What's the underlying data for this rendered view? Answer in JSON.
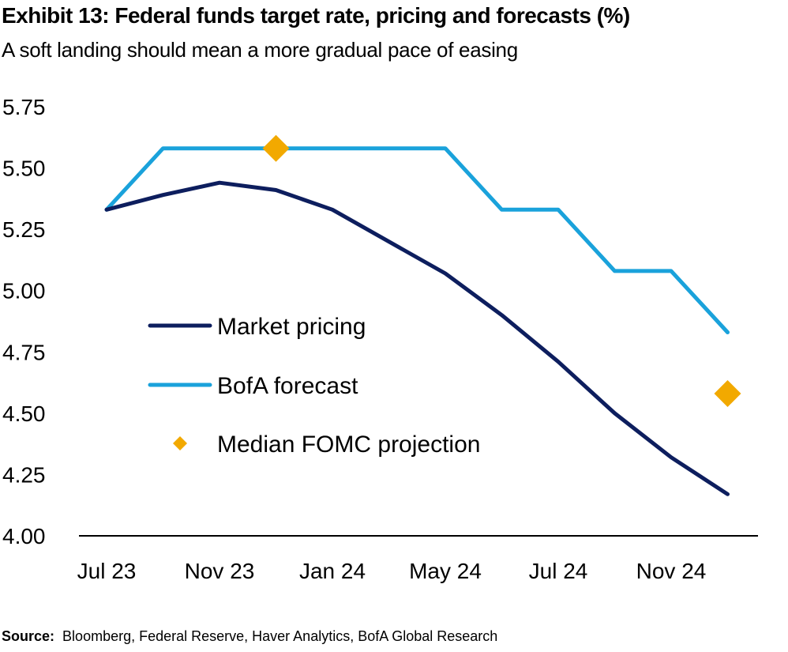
{
  "title": "Exhibit 13: Federal funds target rate, pricing and forecasts (%)",
  "subtitle": "A soft landing should mean a more gradual pace of easing",
  "source_label": "Source:",
  "source_text": "Bloomberg, Federal Reserve, Haver Analytics, BofA Global Research",
  "colors": {
    "market": "#0d1e5e",
    "bofa": "#1aa2db",
    "fomc": "#f2a900",
    "axis": "#000000"
  },
  "chart_data": {
    "type": "line",
    "title": "Exhibit 13: Federal funds target rate, pricing and forecasts (%)",
    "subtitle": "A soft landing should mean a more gradual pace of easing",
    "x_tick_labels": [
      "Jul 23",
      "Nov 23",
      "Jan 24",
      "May 24",
      "Jul 24",
      "Nov 24"
    ],
    "y_tick_labels": [
      "5.75",
      "5.50",
      "5.25",
      "5.00",
      "4.75",
      "4.50",
      "4.25",
      "4.00"
    ],
    "ylim": [
      4.0,
      5.75
    ],
    "grid": false,
    "legend_position": "center-left",
    "series": [
      {
        "name": "Market pricing",
        "style": "line",
        "x": [
          0,
          1,
          2,
          3,
          4,
          5,
          6,
          7,
          8,
          9,
          10,
          11
        ],
        "values": [
          5.33,
          5.39,
          5.44,
          5.41,
          5.33,
          5.2,
          5.07,
          4.9,
          4.71,
          4.5,
          4.32,
          4.17
        ]
      },
      {
        "name": "BofA forecast",
        "style": "line",
        "x": [
          0,
          1,
          2,
          3,
          4,
          5,
          6,
          7,
          8,
          9,
          10,
          11
        ],
        "values": [
          5.33,
          5.58,
          5.58,
          5.58,
          5.58,
          5.58,
          5.58,
          5.33,
          5.33,
          5.08,
          5.08,
          4.83
        ]
      },
      {
        "name": "Median FOMC projection",
        "style": "marker",
        "x": [
          3,
          11
        ],
        "values": [
          5.58,
          4.58
        ]
      }
    ]
  }
}
